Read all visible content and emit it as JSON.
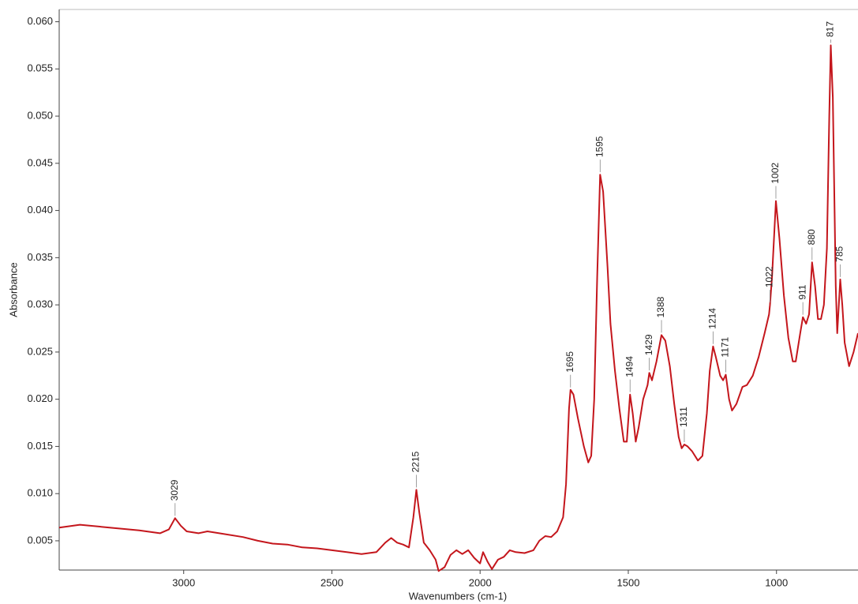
{
  "chart_data": {
    "type": "line",
    "xlabel": "Wavenumbers (cm-1)",
    "ylabel": "Absorbance",
    "color": "#c4161c",
    "xlim": [
      3420,
      725
    ],
    "ylim": [
      0.0019,
      0.0613
    ],
    "xticks": [
      3000,
      2500,
      2000,
      1500,
      1000
    ],
    "yticks": [
      0.005,
      {
        "value": 0.01,
        "label": "0.010"
      },
      0.015,
      {
        "value": 0.02,
        "label": "0.020"
      },
      0.025,
      {
        "value": 0.03,
        "label": "0.030"
      },
      0.035,
      {
        "value": 0.04,
        "label": "0.040"
      },
      0.045,
      {
        "value": 0.05,
        "label": "0.050"
      },
      0.055,
      {
        "value": 0.06,
        "label": "0.060"
      }
    ],
    "peaks": [
      3029,
      2215,
      1695,
      1595,
      1494,
      1429,
      1388,
      1311,
      1214,
      1171,
      1022,
      1002,
      911,
      880,
      817,
      785
    ],
    "x": [
      3420,
      3350,
      3250,
      3150,
      3080,
      3050,
      3029,
      3010,
      2990,
      2950,
      2920,
      2880,
      2800,
      2750,
      2700,
      2650,
      2600,
      2550,
      2500,
      2450,
      2400,
      2350,
      2320,
      2300,
      2280,
      2260,
      2240,
      2225,
      2215,
      2205,
      2190,
      2170,
      2150,
      2140,
      2120,
      2100,
      2080,
      2060,
      2040,
      2020,
      2000,
      1990,
      1975,
      1960,
      1940,
      1920,
      1900,
      1880,
      1850,
      1820,
      1800,
      1780,
      1760,
      1740,
      1720,
      1710,
      1700,
      1695,
      1685,
      1670,
      1650,
      1635,
      1625,
      1615,
      1605,
      1595,
      1585,
      1570,
      1560,
      1545,
      1530,
      1515,
      1505,
      1494,
      1485,
      1475,
      1465,
      1450,
      1435,
      1429,
      1420,
      1405,
      1388,
      1375,
      1360,
      1345,
      1330,
      1320,
      1311,
      1300,
      1285,
      1265,
      1250,
      1235,
      1225,
      1214,
      1205,
      1190,
      1180,
      1171,
      1160,
      1150,
      1135,
      1115,
      1100,
      1080,
      1060,
      1040,
      1025,
      1022,
      1015,
      1002,
      990,
      975,
      960,
      945,
      935,
      920,
      911,
      900,
      890,
      880,
      870,
      860,
      850,
      840,
      830,
      822,
      817,
      810,
      800,
      795,
      785,
      778,
      770,
      755,
      740,
      725
    ],
    "values": [
      0.0064,
      0.0067,
      0.0064,
      0.0061,
      0.0058,
      0.0062,
      0.0074,
      0.0066,
      0.006,
      0.0058,
      0.006,
      0.0058,
      0.0054,
      0.005,
      0.0047,
      0.0046,
      0.0043,
      0.0042,
      0.004,
      0.0038,
      0.0036,
      0.0038,
      0.0048,
      0.0053,
      0.0048,
      0.0046,
      0.0043,
      0.0075,
      0.0104,
      0.008,
      0.0048,
      0.004,
      0.003,
      0.0018,
      0.0022,
      0.0035,
      0.004,
      0.0036,
      0.004,
      0.0032,
      0.0026,
      0.0038,
      0.0028,
      0.002,
      0.003,
      0.0033,
      0.004,
      0.0038,
      0.0037,
      0.004,
      0.005,
      0.0055,
      0.0054,
      0.006,
      0.0075,
      0.011,
      0.019,
      0.021,
      0.0205,
      0.018,
      0.015,
      0.0133,
      0.014,
      0.02,
      0.033,
      0.0438,
      0.042,
      0.034,
      0.028,
      0.023,
      0.019,
      0.0155,
      0.0155,
      0.0205,
      0.0185,
      0.0155,
      0.017,
      0.02,
      0.0215,
      0.0228,
      0.022,
      0.024,
      0.0268,
      0.0262,
      0.0235,
      0.0195,
      0.016,
      0.0148,
      0.0152,
      0.015,
      0.0145,
      0.0135,
      0.014,
      0.0185,
      0.023,
      0.0256,
      0.0245,
      0.0225,
      0.022,
      0.0226,
      0.02,
      0.0188,
      0.0195,
      0.0213,
      0.0215,
      0.0225,
      0.0245,
      0.027,
      0.029,
      0.03,
      0.033,
      0.041,
      0.037,
      0.031,
      0.0265,
      0.024,
      0.024,
      0.027,
      0.0287,
      0.028,
      0.029,
      0.0345,
      0.032,
      0.0285,
      0.0285,
      0.03,
      0.036,
      0.05,
      0.0575,
      0.052,
      0.032,
      0.027,
      0.0327,
      0.03,
      0.026,
      0.0235,
      0.025,
      0.027
    ]
  }
}
